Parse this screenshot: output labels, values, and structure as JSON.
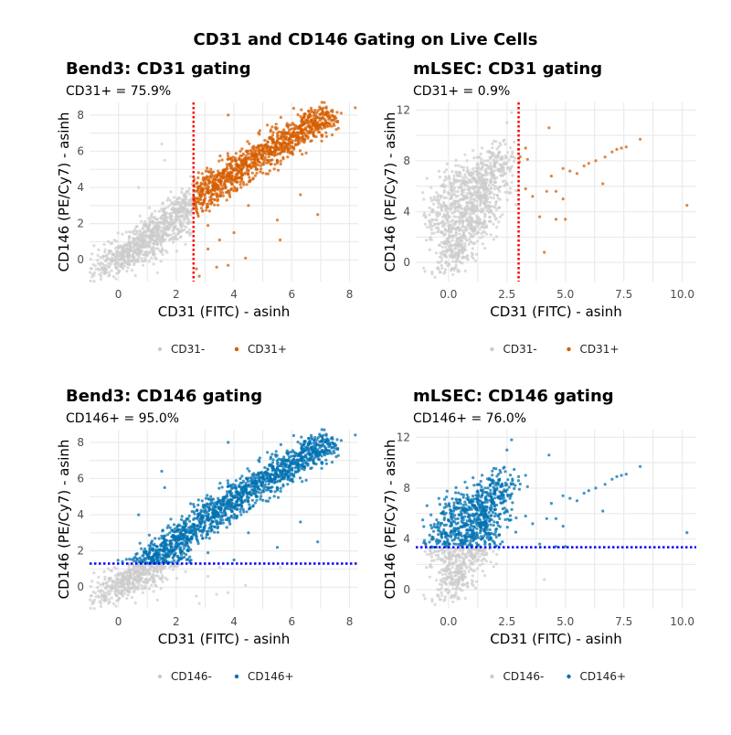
{
  "title": "CD31 and CD146 Gating on Live Cells",
  "chart_data": {
    "datasets": {
      "Bend3": {
        "core": [
          [
            -0.6,
            -0.6
          ],
          [
            -0.3,
            -0.2
          ],
          [
            0,
            0.1
          ],
          [
            0.2,
            0.3
          ],
          [
            0.4,
            0.6
          ],
          [
            0.6,
            0.8
          ],
          [
            0.8,
            1.0
          ],
          [
            1.0,
            1.3
          ],
          [
            1.2,
            1.5
          ],
          [
            1.4,
            1.8
          ],
          [
            1.6,
            2.0
          ],
          [
            1.8,
            2.2
          ],
          [
            2.0,
            2.5
          ],
          [
            2.2,
            2.8
          ],
          [
            2.4,
            3.0
          ],
          [
            2.6,
            3.3
          ],
          [
            2.8,
            3.5
          ],
          [
            3.0,
            3.8
          ],
          [
            3.2,
            4.0
          ],
          [
            3.4,
            4.2
          ],
          [
            3.6,
            4.4
          ],
          [
            3.8,
            4.6
          ],
          [
            4.0,
            4.8
          ],
          [
            4.2,
            5.0
          ],
          [
            4.4,
            5.2
          ],
          [
            4.6,
            5.4
          ],
          [
            4.8,
            5.6
          ],
          [
            5.0,
            5.8
          ],
          [
            5.2,
            6.0
          ],
          [
            5.4,
            6.2
          ],
          [
            5.6,
            6.4
          ],
          [
            5.8,
            6.6
          ],
          [
            6.0,
            6.8
          ],
          [
            6.2,
            7.0
          ],
          [
            6.4,
            7.2
          ],
          [
            6.6,
            7.4
          ],
          [
            6.8,
            7.6
          ],
          [
            7.0,
            7.8
          ],
          [
            7.2,
            8.0
          ],
          [
            0.5,
            0.2
          ],
          [
            1.0,
            0.6
          ],
          [
            1.5,
            1.2
          ],
          [
            2.0,
            1.8
          ]
        ],
        "outliers": [
          [
            3.8,
            8.0
          ],
          [
            1.5,
            6.4
          ],
          [
            1.6,
            5.5
          ],
          [
            0.7,
            4.0
          ],
          [
            3.5,
            1.1
          ],
          [
            3.1,
            0.6
          ],
          [
            3.4,
            -0.4
          ],
          [
            3.8,
            -0.3
          ],
          [
            4.4,
            0.1
          ],
          [
            5.6,
            1.1
          ],
          [
            5.5,
            2.2
          ],
          [
            6.9,
            2.5
          ],
          [
            6.3,
            3.6
          ],
          [
            8.2,
            8.4
          ],
          [
            7.4,
            6.9
          ],
          [
            -0.6,
            -0.9
          ],
          [
            -0.9,
            -0.8
          ],
          [
            2.7,
            -0.5
          ],
          [
            2.8,
            -0.9
          ],
          [
            4.0,
            1.5
          ],
          [
            3.1,
            1.9
          ],
          [
            4.5,
            3.0
          ]
        ]
      },
      "mLSEC": {
        "core": [
          [
            0.0,
            0.5
          ],
          [
            0.2,
            1.5
          ],
          [
            0.4,
            2.5
          ],
          [
            0.5,
            3.5
          ],
          [
            0.7,
            4.3
          ],
          [
            0.9,
            5.0
          ],
          [
            1.1,
            5.8
          ],
          [
            1.3,
            6.5
          ],
          [
            1.5,
            7.0
          ],
          [
            1.8,
            7.5
          ],
          [
            2.1,
            8.0
          ],
          [
            2.4,
            8.3
          ],
          [
            -0.3,
            4.0
          ],
          [
            -0.2,
            5.0
          ],
          [
            0.2,
            6.0
          ],
          [
            0.5,
            6.8
          ],
          [
            1.7,
            4.0
          ],
          [
            2.0,
            5.5
          ],
          [
            0.9,
            3.0
          ],
          [
            0.3,
            0.2
          ],
          [
            0.6,
            1.0
          ],
          [
            1.2,
            2.5
          ],
          [
            -0.4,
            2.8
          ],
          [
            1.5,
            5.2
          ]
        ],
        "outliers": [
          [
            2.7,
            11.8
          ],
          [
            2.5,
            11.0
          ],
          [
            4.3,
            10.6
          ],
          [
            8.2,
            9.7
          ],
          [
            7.6,
            9.1
          ],
          [
            7.4,
            9.0
          ],
          [
            7.2,
            8.9
          ],
          [
            7.0,
            8.7
          ],
          [
            6.7,
            8.3
          ],
          [
            6.3,
            8.0
          ],
          [
            6.0,
            7.8
          ],
          [
            5.8,
            7.6
          ],
          [
            5.5,
            7.0
          ],
          [
            5.2,
            7.2
          ],
          [
            4.9,
            7.4
          ],
          [
            4.4,
            6.8
          ],
          [
            4.6,
            5.6
          ],
          [
            4.2,
            5.6
          ],
          [
            4.9,
            5.0
          ],
          [
            6.6,
            6.2
          ],
          [
            10.2,
            4.5
          ],
          [
            3.9,
            3.6
          ],
          [
            4.6,
            3.4
          ],
          [
            5.0,
            3.4
          ],
          [
            4.1,
            0.8
          ],
          [
            3.6,
            5.2
          ],
          [
            3.3,
            5.8
          ],
          [
            3.0,
            8.9
          ],
          [
            3.3,
            9.0
          ],
          [
            -1.0,
            -0.7
          ],
          [
            -0.7,
            -0.9
          ]
        ]
      }
    },
    "panels": [
      {
        "type": "scatter",
        "dataset": "Bend3",
        "title": "Bend3: CD31 gating",
        "subtitle": "CD31+ = 75.9%",
        "xlabel": "CD31 (FITC) - asinh",
        "ylabel": "CD146 (PE/Cy7) - asinh",
        "xlim": [
          -1,
          8.3
        ],
        "ylim": [
          -1.2,
          8.7
        ],
        "xticks": [
          "0",
          "2",
          "4",
          "6",
          "8"
        ],
        "xtick_values": [
          0,
          2,
          4,
          6,
          8
        ],
        "yticks": [
          "0",
          "2",
          "4",
          "6",
          "8"
        ],
        "ytick_values": [
          0,
          2,
          4,
          6,
          8
        ],
        "gate": {
          "axis": "x",
          "value": 2.6,
          "color": "#ff0000"
        },
        "legend": [
          {
            "label": "CD31-",
            "color": "#cccccc"
          },
          {
            "label": "CD31+",
            "color": "#d55e00"
          }
        ],
        "legend_position": "bottom",
        "grid": true
      },
      {
        "type": "scatter",
        "dataset": "mLSEC",
        "title": "mLSEC: CD31 gating",
        "subtitle": "CD31+ = 0.9%",
        "xlabel": "CD31 (FITC) - asinh",
        "ylabel": "CD146 (PE/Cy7) - asinh",
        "xlim": [
          -1.4,
          10.6
        ],
        "ylim": [
          -1.5,
          12.6
        ],
        "xticks": [
          "0.0",
          "2.5",
          "5.0",
          "7.5",
          "10.0"
        ],
        "xtick_values": [
          0,
          2.5,
          5,
          7.5,
          10
        ],
        "yticks": [
          "0",
          "4",
          "8",
          "12"
        ],
        "ytick_values": [
          0,
          4,
          8,
          12
        ],
        "gate": {
          "axis": "x",
          "value": 3.0,
          "color": "#ff0000"
        },
        "legend": [
          {
            "label": "CD31-",
            "color": "#cccccc"
          },
          {
            "label": "CD31+",
            "color": "#d55e00"
          }
        ],
        "legend_position": "bottom",
        "grid": true
      },
      {
        "type": "scatter",
        "dataset": "Bend3",
        "title": "Bend3: CD146 gating",
        "subtitle": "CD146+ = 95.0%",
        "xlabel": "CD31 (FITC) - asinh",
        "ylabel": "CD146 (PE/Cy7) - asinh",
        "xlim": [
          -1,
          8.3
        ],
        "ylim": [
          -1.2,
          8.7
        ],
        "xticks": [
          "0",
          "2",
          "4",
          "6",
          "8"
        ],
        "xtick_values": [
          0,
          2,
          4,
          6,
          8
        ],
        "yticks": [
          "0",
          "2",
          "4",
          "6",
          "8"
        ],
        "ytick_values": [
          0,
          2,
          4,
          6,
          8
        ],
        "gate": {
          "axis": "y",
          "value": 1.3,
          "color": "#0000ff"
        },
        "legend": [
          {
            "label": "CD146-",
            "color": "#cccccc"
          },
          {
            "label": "CD146+",
            "color": "#0072b2"
          }
        ],
        "legend_position": "bottom",
        "grid": true
      },
      {
        "type": "scatter",
        "dataset": "mLSEC",
        "title": "mLSEC: CD146 gating",
        "subtitle": "CD146+ = 76.0%",
        "xlabel": "CD31 (FITC) - asinh",
        "ylabel": "CD146 (PE/Cy7) - asinh",
        "xlim": [
          -1.4,
          10.6
        ],
        "ylim": [
          -1.5,
          12.6
        ],
        "xticks": [
          "0.0",
          "2.5",
          "5.0",
          "7.5",
          "10.0"
        ],
        "xtick_values": [
          0,
          2.5,
          5,
          7.5,
          10
        ],
        "yticks": [
          "0",
          "4",
          "8",
          "12"
        ],
        "ytick_values": [
          0,
          4,
          8,
          12
        ],
        "gate": {
          "axis": "y",
          "value": 3.35,
          "color": "#0000ff"
        },
        "legend": [
          {
            "label": "CD146-",
            "color": "#cccccc"
          },
          {
            "label": "CD146+",
            "color": "#0072b2"
          }
        ],
        "legend_position": "bottom",
        "grid": true
      }
    ]
  }
}
